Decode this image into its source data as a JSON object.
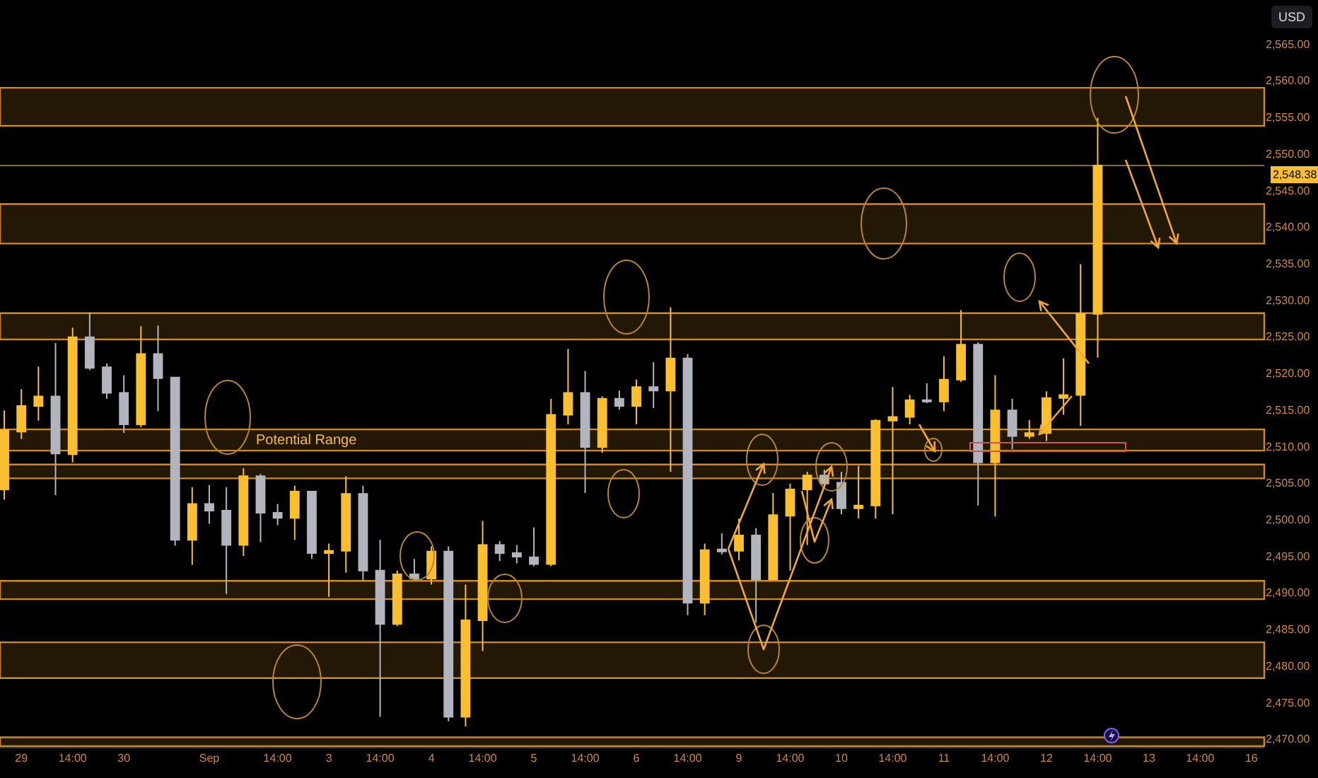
{
  "chart_data": {
    "type": "candlestick",
    "annotations": [
      "USD"
    ],
    "categories": [
      null,
      "29",
      null,
      null,
      "14:00",
      null,
      null,
      "30",
      null,
      null,
      null,
      null,
      "Sep",
      null,
      null,
      null,
      "14:00",
      null,
      null,
      "3",
      null,
      null,
      "14:00",
      null,
      null,
      "4",
      null,
      null,
      "14:00",
      null,
      null,
      "5",
      null,
      null,
      "14:00",
      null,
      null,
      "6",
      null,
      null,
      "14:00",
      null,
      null,
      "9",
      null,
      null,
      "14:00",
      null,
      null,
      "10",
      null,
      null,
      "14:00",
      null,
      null,
      "11",
      null,
      null,
      "14:00",
      null,
      null,
      "12",
      null,
      null,
      "14:00",
      null,
      null,
      "13",
      null,
      null,
      "14:00",
      null,
      null,
      "16"
    ],
    "ohlc": [
      [
        2504.1,
        2514.9,
        2502.7,
        2512.2
      ],
      [
        2512.0,
        2517.8,
        2511.0,
        2515.5
      ],
      [
        2515.5,
        2520.9,
        2513.5,
        2516.8
      ],
      [
        2516.8,
        2524.1,
        2503.3,
        2509.0
      ],
      [
        2508.9,
        2526.2,
        2507.8,
        2524.9
      ],
      [
        2524.9,
        2528.3,
        2520.4,
        2520.7
      ],
      [
        2520.8,
        2521.3,
        2516.5,
        2517.3
      ],
      [
        2517.3,
        2519.7,
        2511.8,
        2513.0
      ],
      [
        2513.0,
        2526.4,
        2512.6,
        2522.6
      ],
      [
        2522.6,
        2526.5,
        2514.8,
        2519.3
      ],
      [
        2519.4,
        2519.5,
        2496.4,
        2497.2
      ],
      [
        2497.2,
        2504.4,
        2493.8,
        2502.1
      ],
      [
        2502.1,
        2504.7,
        2499.4,
        2501.2
      ],
      [
        2501.2,
        2504.4,
        2489.8,
        2496.5
      ],
      [
        2496.5,
        2507.0,
        2495.0,
        2505.9
      ],
      [
        2505.9,
        2506.2,
        2496.9,
        2500.9
      ],
      [
        2500.9,
        2502.1,
        2499.2,
        2500.2
      ],
      [
        2500.2,
        2504.6,
        2497.2,
        2503.8
      ],
      [
        2503.8,
        2503.9,
        2494.6,
        2495.4
      ],
      [
        2495.4,
        2496.7,
        2489.4,
        2495.7
      ],
      [
        2495.7,
        2505.9,
        2492.7,
        2503.5
      ],
      [
        2503.5,
        2504.6,
        2491.7,
        2493.0
      ],
      [
        2493.0,
        2497.2,
        2473.0,
        2485.7
      ],
      [
        2485.7,
        2493.0,
        2485.4,
        2492.5
      ],
      [
        2492.5,
        2494.6,
        2491.7,
        2491.9
      ],
      [
        2491.9,
        2496.3,
        2491.1,
        2495.6
      ],
      [
        2495.6,
        2496.3,
        2472.4,
        2473.0
      ],
      [
        2473.0,
        2491.1,
        2471.7,
        2486.2
      ],
      [
        2486.2,
        2499.8,
        2482.0,
        2496.5
      ],
      [
        2496.5,
        2497.0,
        2494.3,
        2495.4
      ],
      [
        2495.4,
        2496.5,
        2494.0,
        2494.9
      ],
      [
        2494.8,
        2498.9,
        2493.6,
        2493.9
      ],
      [
        2493.9,
        2516.5,
        2493.6,
        2514.3
      ],
      [
        2514.3,
        2523.3,
        2513.0,
        2517.3
      ],
      [
        2517.3,
        2520.3,
        2503.6,
        2509.9
      ],
      [
        2509.9,
        2516.8,
        2509.1,
        2516.5
      ],
      [
        2516.5,
        2517.6,
        2515.0,
        2515.5
      ],
      [
        2515.5,
        2519.1,
        2513.0,
        2518.1
      ],
      [
        2518.1,
        2521.5,
        2515.2,
        2517.6
      ],
      [
        2517.6,
        2529.0,
        2506.5,
        2522.0
      ],
      [
        2522.0,
        2522.6,
        2486.9,
        2488.6
      ],
      [
        2488.6,
        2496.7,
        2486.9,
        2495.8
      ],
      [
        2495.9,
        2498.1,
        2495.2,
        2495.6
      ],
      [
        2495.7,
        2500.1,
        2494.4,
        2497.8
      ],
      [
        2497.8,
        2498.8,
        2485.9,
        2491.8
      ],
      [
        2491.8,
        2503.6,
        2491.7,
        2500.6
      ],
      [
        2500.5,
        2504.9,
        2493.0,
        2504.1
      ],
      [
        2504.1,
        2506.5,
        2496.5,
        2506.0
      ],
      [
        2506.0,
        2506.8,
        2504.3,
        2504.9
      ],
      [
        2505.0,
        2506.5,
        2500.7,
        2501.5
      ],
      [
        2501.5,
        2507.3,
        2500.1,
        2501.9
      ],
      [
        2501.9,
        2513.7,
        2500.1,
        2513.5
      ],
      [
        2513.5,
        2518.1,
        2500.7,
        2514.0
      ],
      [
        2514.0,
        2517.0,
        2513.0,
        2516.3
      ],
      [
        2516.3,
        2518.6,
        2515.9,
        2516.1
      ],
      [
        2516.1,
        2522.3,
        2514.8,
        2519.1
      ],
      [
        2519.1,
        2528.6,
        2518.8,
        2523.9
      ],
      [
        2523.9,
        2524.2,
        2501.9,
        2507.8
      ],
      [
        2507.8,
        2519.7,
        2500.4,
        2514.9
      ],
      [
        2514.9,
        2516.5,
        2509.6,
        2511.4
      ],
      [
        2511.4,
        2513.6,
        2511.0,
        2511.8
      ],
      [
        2511.8,
        2517.5,
        2510.7,
        2516.6
      ],
      [
        2516.6,
        2522.0,
        2514.3,
        2517.0
      ],
      [
        2517.0,
        2534.9,
        2512.8,
        2528.1
      ],
      [
        2528.1,
        2554.9,
        2522.1,
        2548.38
      ],
      null,
      null,
      null,
      null,
      null,
      null,
      null,
      null,
      null
    ],
    "colors": [
      "#f9bf2f",
      "#f9bf2f",
      "#f9bf2f",
      "#b2b5bd",
      "#f9bf2f",
      "#b2b5bd",
      "#b2b5bd",
      "#b2b5bd",
      "#f9bf2f",
      "#b2b5bd",
      "#b2b5bd",
      "#f9bf2f",
      "#b2b5bd",
      "#b2b5bd",
      "#f9bf2f",
      "#b2b5bd",
      "#b2b5bd",
      "#f9bf2f",
      "#b2b5bd",
      "#f9bf2f",
      "#f9bf2f",
      "#b2b5bd",
      "#b2b5bd",
      "#f9bf2f",
      "#b2b5bd",
      "#f9bf2f",
      "#b2b5bd",
      "#f9bf2f",
      "#f9bf2f",
      "#b2b5bd",
      "#b2b5bd",
      "#b2b5bd",
      "#f9bf2f",
      "#f9bf2f",
      "#b2b5bd",
      "#f9bf2f",
      "#b2b5bd",
      "#f9bf2f",
      "#b2b5bd",
      "#f9bf2f",
      "#b2b5bd",
      "#f9bf2f",
      "#b2b5bd",
      "#f9bf2f",
      "#b2b5bd",
      "#f9bf2f",
      "#f9bf2f",
      "#f9bf2f",
      "#b2b5bd",
      "#b2b5bd",
      "#f9bf2f",
      "#f9bf2f",
      "#f9bf2f",
      "#f9bf2f",
      "#b2b5bd",
      "#f9bf2f",
      "#f9bf2f",
      "#b2b5bd",
      "#f9bf2f",
      "#b2b5bd",
      "#f9bf2f",
      "#f9bf2f",
      "#f9bf2f",
      "#f9bf2f",
      "#f9bf2f",
      null,
      null,
      null,
      null,
      null,
      null,
      null,
      null,
      null
    ],
    "ylim": [
      2468.9,
      2571.0
    ],
    "yticks": [
      {
        "value": 2470,
        "label": "2,470.00"
      },
      {
        "value": 2475,
        "label": "2,475.00"
      },
      {
        "value": 2480,
        "label": "2,480.00"
      },
      {
        "value": 2485,
        "label": "2,485.00"
      },
      {
        "value": 2490,
        "label": "2,490.00"
      },
      {
        "value": 2495,
        "label": "2,495.00"
      },
      {
        "value": 2500,
        "label": "2,500.00"
      },
      {
        "value": 2505,
        "label": "2,505.00"
      },
      {
        "value": 2510,
        "label": "2,510.00"
      },
      {
        "value": 2515,
        "label": "2,515.00"
      },
      {
        "value": 2520,
        "label": "2,520.00"
      },
      {
        "value": 2525,
        "label": "2,525.00"
      },
      {
        "value": 2530,
        "label": "2,530.00"
      },
      {
        "value": 2535,
        "label": "2,535.00"
      },
      {
        "value": 2540,
        "label": "2,540.00"
      },
      {
        "value": 2545,
        "label": "2,545.00"
      },
      {
        "value": 2550,
        "label": "2,550.00"
      },
      {
        "value": 2555,
        "label": "2,555.00"
      },
      {
        "value": 2560,
        "label": "2,560.00"
      },
      {
        "value": 2565,
        "label": "2,565.00"
      }
    ],
    "bands": [
      {
        "axis": "y",
        "from": 2553.8,
        "to": 2559.0,
        "color": "#d08a20"
      },
      {
        "axis": "y",
        "from": 2537.7,
        "to": 2543.1,
        "color": "#d08a20"
      },
      {
        "axis": "y",
        "from": 2524.6,
        "to": 2528.2,
        "color": "#d08a20"
      },
      {
        "axis": "y",
        "from": 2509.4,
        "to": 2512.3,
        "label": "Potential Range",
        "color": "#d08a20"
      },
      {
        "axis": "y",
        "from": 2505.6,
        "to": 2507.5,
        "color": "#d08a20"
      },
      {
        "axis": "y",
        "from": 2489.1,
        "to": 2491.6,
        "color": "#d08a20"
      },
      {
        "axis": "y",
        "from": 2478.3,
        "to": 2483.2,
        "color": "#d08a20"
      },
      {
        "axis": "y",
        "from": 2469.0,
        "to": 2470.2,
        "color": "#d08a20"
      }
    ],
    "ref_lines": [
      {
        "axis": "y",
        "value": 2548.38,
        "label": "2,548.38",
        "color": "#8a6a2a"
      }
    ]
  }
}
